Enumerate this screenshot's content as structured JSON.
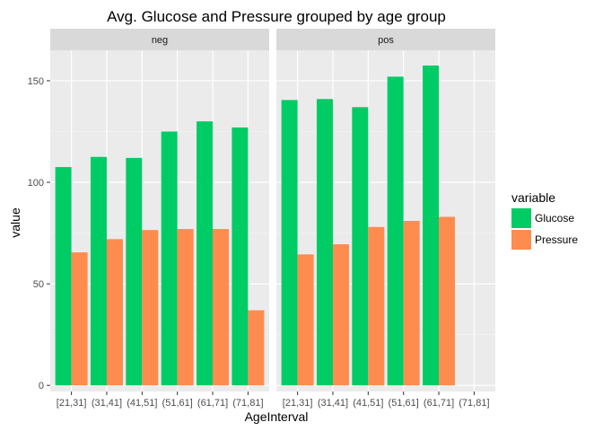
{
  "colors": {
    "panel_bg": "#ebebeb",
    "grid_major": "#ffffff",
    "grid_minor": "#f5f5f5",
    "strip_bg": "#d9d9d9",
    "tick": "#333333"
  },
  "chart_data": {
    "type": "bar",
    "title": "Avg. Glucose and Pressure grouped by age group",
    "xlabel": "AgeInterval",
    "ylabel": "value",
    "ylim": [
      -3,
      165
    ],
    "yticks": [
      0,
      50,
      100,
      150
    ],
    "grid": true,
    "facets": [
      "neg",
      "pos"
    ],
    "categories": [
      "[21,31]",
      "(31,41]",
      "(41,51]",
      "(51,61]",
      "(61,71]",
      "(71,81]"
    ],
    "legend": {
      "title": "variable",
      "position": "right"
    },
    "series": [
      {
        "name": "Glucose",
        "color": "#00cc66",
        "values": {
          "neg": [
            107.5,
            112.5,
            112,
            125,
            130,
            127
          ],
          "pos": [
            140.5,
            141,
            137,
            152,
            157.5,
            null
          ]
        }
      },
      {
        "name": "Pressure",
        "color": "#ff8c4f",
        "values": {
          "neg": [
            65.5,
            72,
            76.5,
            77,
            77,
            37
          ],
          "pos": [
            64.5,
            69.5,
            78,
            81,
            83,
            null
          ]
        }
      }
    ]
  }
}
